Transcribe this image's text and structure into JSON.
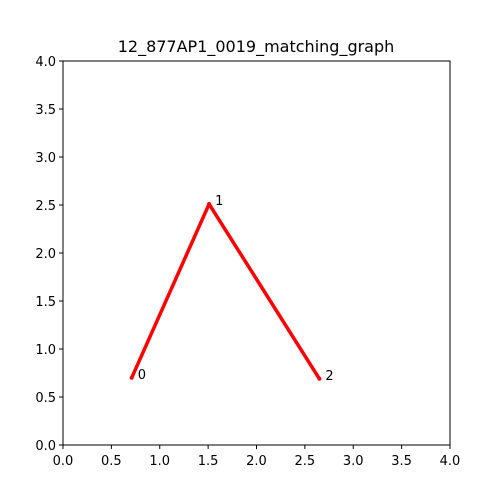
{
  "chart_data": {
    "type": "line",
    "title": "12_877AP1_0019_matching_graph",
    "xlabel": "",
    "ylabel": "",
    "xlim": [
      0.0,
      4.0
    ],
    "ylim": [
      0.0,
      4.0
    ],
    "xticks": [
      "0.0",
      "0.5",
      "1.0",
      "1.5",
      "2.0",
      "2.5",
      "3.0",
      "3.5",
      "4.0"
    ],
    "yticks": [
      "0.0",
      "0.5",
      "1.0",
      "1.5",
      "2.0",
      "2.5",
      "3.0",
      "3.5",
      "4.0"
    ],
    "grid": false,
    "legend": "none",
    "edge_color": "#ff0000",
    "nodes": [
      {
        "label": "0",
        "x": 0.71,
        "y": 0.7
      },
      {
        "label": "1",
        "x": 1.51,
        "y": 2.51
      },
      {
        "label": "2",
        "x": 2.65,
        "y": 0.69
      }
    ],
    "edges": [
      [
        0,
        1
      ],
      [
        1,
        2
      ]
    ]
  }
}
